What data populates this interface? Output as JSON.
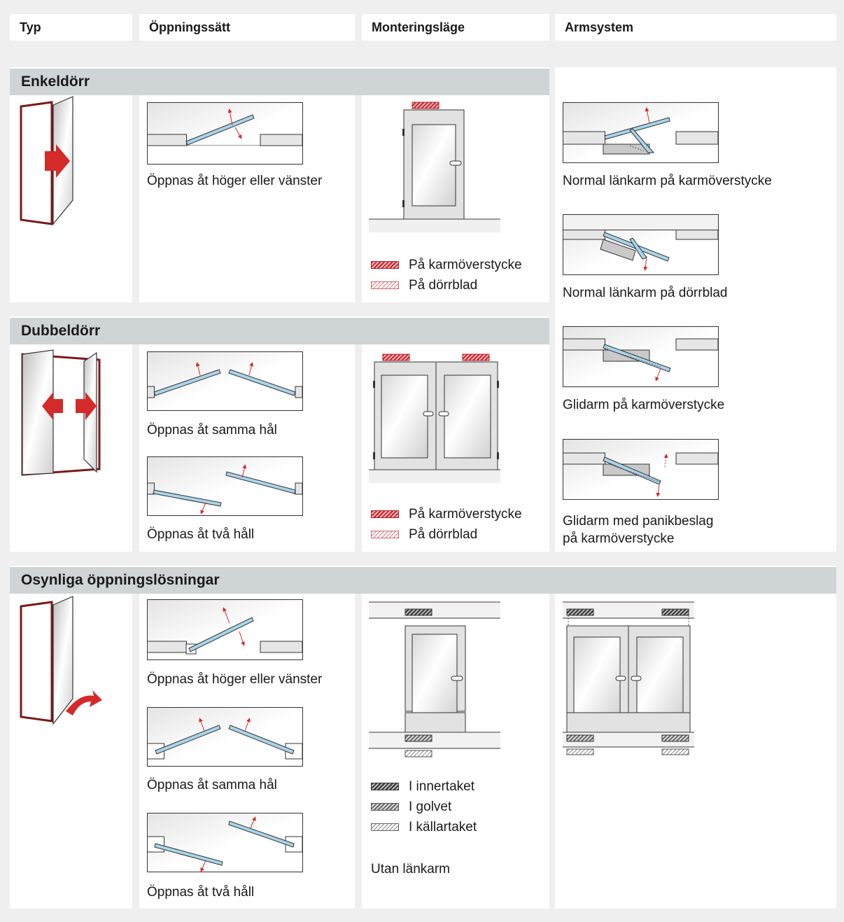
{
  "columns": [
    "Typ",
    "Öppningssätt",
    "Monteringsläge",
    "Armsystem"
  ],
  "sections": {
    "single": "Enkeldörr",
    "double": "Dubbeldörr",
    "hidden": "Osynliga öppningslösningar"
  },
  "single": {
    "opening": "Öppnas åt höger eller vänster",
    "legend": [
      "På karmöverstycke",
      "På dörrblad"
    ]
  },
  "double": {
    "opening_same": "Öppnas åt samma hål",
    "opening_two": "Öppnas åt två håll",
    "legend": [
      "På karmöverstycke",
      "På dörrblad"
    ]
  },
  "arms": {
    "a1": "Normal länkarm på karmöverstycke",
    "a2": "Normal länkarm på dörrblad",
    "a3": "Glidarm på karmöverstycke",
    "a4_line1": "Glidarm med panikbeslag",
    "a4_line2": "på karmöverstycke"
  },
  "hidden": {
    "opening_lr": "Öppnas åt höger eller vänster",
    "opening_same": "Öppnas åt samma hål",
    "opening_two": "Öppnas åt två håll",
    "legend": [
      "I innertaket",
      "I golvet",
      "I källartaket"
    ],
    "note": "Utan länkarm"
  },
  "colors": {
    "band": "#cfd4d6",
    "arrow_red": "#d42a2a",
    "door_blue": "#a9d4ea",
    "frame_red": "#7a1a1a"
  }
}
